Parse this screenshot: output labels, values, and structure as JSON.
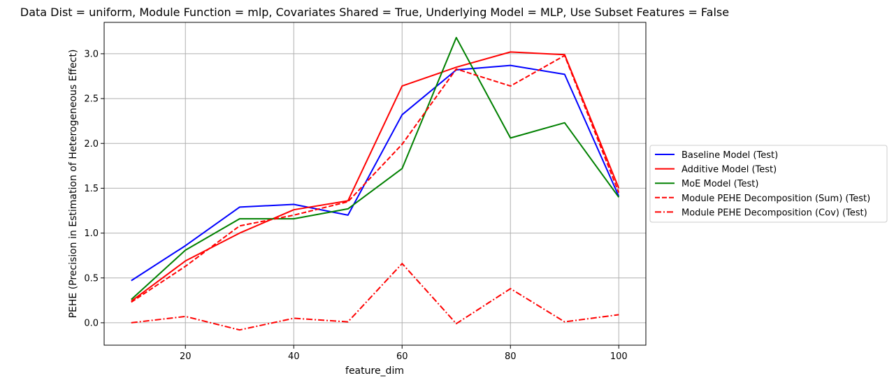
{
  "chart_data": {
    "type": "line",
    "title": "Data Dist = uniform, Module Function = mlp, Covariates Shared = True, Underlying Model = MLP, Use Subset Features = False",
    "xlabel": "feature_dim",
    "ylabel": "PEHE (Precision in Estimation of Heterogeneous Effect)",
    "x": [
      10,
      20,
      30,
      40,
      50,
      60,
      70,
      80,
      90,
      100
    ],
    "xlim": [
      5,
      105
    ],
    "ylim": [
      -0.25,
      3.35
    ],
    "xticks": [
      20,
      40,
      60,
      80,
      100
    ],
    "yticks": [
      0.0,
      0.5,
      1.0,
      1.5,
      2.0,
      2.5,
      3.0
    ],
    "xtick_labels": [
      "20",
      "40",
      "60",
      "80",
      "100"
    ],
    "ytick_labels": [
      "0.0",
      "0.5",
      "1.0",
      "1.5",
      "2.0",
      "2.5",
      "3.0"
    ],
    "grid": true,
    "legend_position": "center-right, outside plot",
    "series": [
      {
        "name": "Baseline Model (Test)",
        "color": "#0000ff",
        "dash": "solid",
        "values": [
          0.47,
          0.86,
          1.29,
          1.32,
          1.2,
          2.32,
          2.82,
          2.87,
          2.77,
          1.41
        ]
      },
      {
        "name": "Additive Model (Test)",
        "color": "#ff0000",
        "dash": "solid",
        "values": [
          0.24,
          0.69,
          1.0,
          1.26,
          1.36,
          2.64,
          2.85,
          3.02,
          2.99,
          1.5
        ]
      },
      {
        "name": "MoE Model (Test)",
        "color": "#008000",
        "dash": "solid",
        "values": [
          0.26,
          0.81,
          1.16,
          1.16,
          1.27,
          1.72,
          3.18,
          2.06,
          2.23,
          1.4
        ]
      },
      {
        "name": "Module PEHE Decomposition (Sum) (Test)",
        "color": "#ff0000",
        "dash": "dashed",
        "values": [
          0.23,
          0.63,
          1.08,
          1.2,
          1.35,
          1.99,
          2.83,
          2.64,
          2.98,
          1.45
        ]
      },
      {
        "name": "Module PEHE Decomposition (Cov) (Test)",
        "color": "#ff0000",
        "dash": "dashdot",
        "values": [
          0.0,
          0.07,
          -0.08,
          0.05,
          0.01,
          0.66,
          -0.01,
          0.38,
          0.01,
          0.09
        ]
      }
    ]
  }
}
